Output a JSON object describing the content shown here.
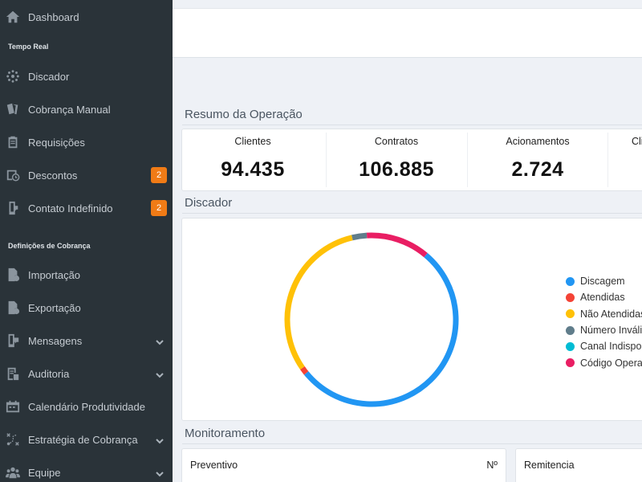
{
  "sidebar": {
    "items": {
      "dashboard": {
        "label": "Dashboard",
        "icon": "home-icon"
      },
      "discador": {
        "label": "Discador",
        "icon": "dialer-icon"
      },
      "cobranca_manual": {
        "label": "Cobrança Manual",
        "icon": "cards-icon"
      },
      "requisicoes": {
        "label": "Requisições",
        "icon": "clipboard-icon"
      },
      "descontos": {
        "label": "Descontos",
        "icon": "discount-icon",
        "badge": "2"
      },
      "contato_indefinido": {
        "label": "Contato Indefinido",
        "icon": "phone-icon",
        "badge": "2"
      },
      "importacao": {
        "label": "Importação",
        "icon": "file-import-icon"
      },
      "exportacao": {
        "label": "Exportação",
        "icon": "file-export-icon"
      },
      "mensagens": {
        "label": "Mensagens",
        "icon": "message-icon"
      },
      "auditoria": {
        "label": "Auditoria",
        "icon": "audit-icon"
      },
      "calendario": {
        "label": "Calendário Produtividade",
        "icon": "calendar-icon"
      },
      "estrategia": {
        "label": "Estratégia de Cobrança",
        "icon": "strategy-icon"
      },
      "equipe": {
        "label": "Equipe",
        "icon": "users-icon"
      }
    },
    "sections": {
      "tempo_real": "Tempo Real",
      "definicoes": "Definições de Cobrança"
    }
  },
  "main": {
    "resumo_title": "Resumo da Operação",
    "stats": [
      {
        "label": "Clientes",
        "value": "94.435"
      },
      {
        "label": "Contratos",
        "value": "106.885"
      },
      {
        "label": "Acionamentos",
        "value": "2.724"
      },
      {
        "label": "Cli",
        "value": ""
      }
    ],
    "discador_title": "Discador",
    "monitoramento_title": "Monitoramento",
    "cards": {
      "preventivo": {
        "title": "Preventivo",
        "right": "Nº"
      },
      "remitencia": {
        "title": "Remitencia"
      }
    }
  },
  "colors": {
    "sidebar_bg": "#2a3339",
    "badge": "#f07b16",
    "discagem": "#2196f3",
    "atendidas": "#f44336",
    "nao_atendidas": "#ffc107",
    "numero_invalido": "#607d8b",
    "canal_indisponivel": "#00bcd4",
    "codigo_operadora": "#e91e63"
  },
  "chart_data": {
    "type": "pie",
    "donut": true,
    "legend": [
      "Discagem",
      "Atendidas",
      "Não Atendidas",
      "Número Inváli",
      "Canal Indispon",
      "Código Operac"
    ],
    "series": [
      {
        "name": "Discagem",
        "value": 53,
        "color": "#2196f3"
      },
      {
        "name": "Atendidas",
        "value": 1.2,
        "color": "#f44336"
      },
      {
        "name": "Não Atendidas",
        "value": 31,
        "color": "#ffc107"
      },
      {
        "name": "Número Inváli",
        "value": 2.8,
        "color": "#607d8b"
      },
      {
        "name": "Canal Indispon",
        "value": 0,
        "color": "#00bcd4"
      },
      {
        "name": "Código Operac",
        "value": 12,
        "color": "#e91e63"
      }
    ],
    "legend_position": "right"
  }
}
